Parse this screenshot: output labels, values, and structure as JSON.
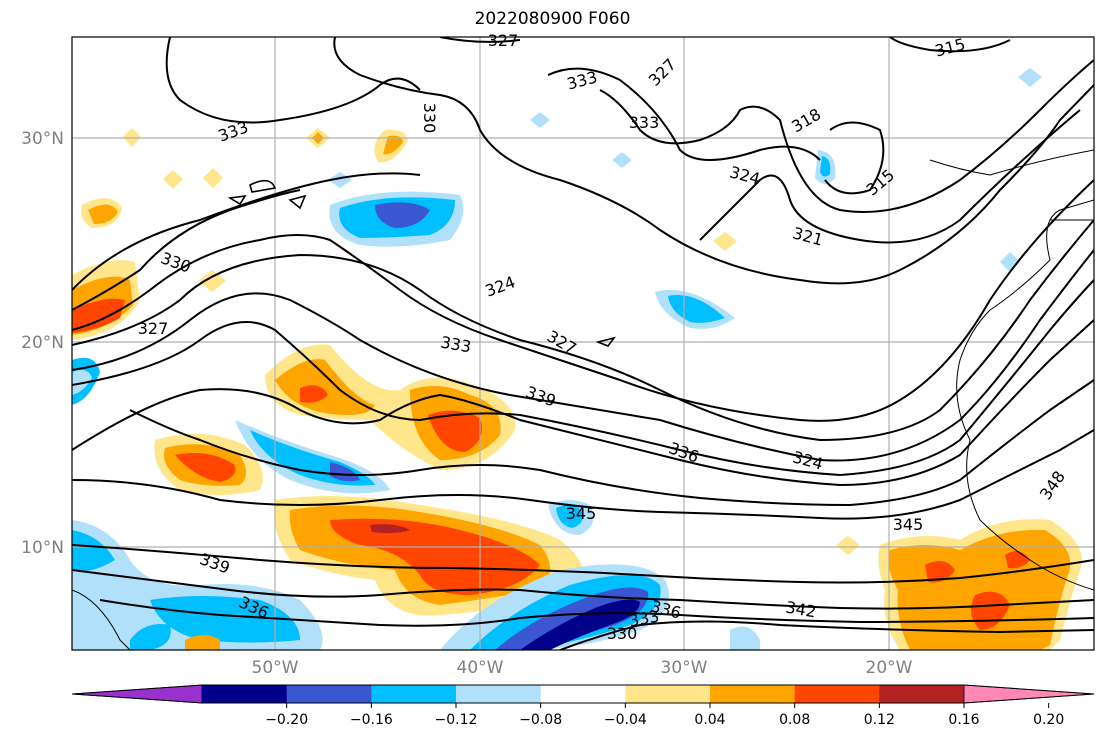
{
  "title": "2022080900 F060",
  "lat_labels": [
    "30°N",
    "20°N",
    "10°N"
  ],
  "lon_labels": [
    "50°W",
    "40°W",
    "30°W",
    "20°W"
  ],
  "colorbar": {
    "colors": [
      "#9932cc",
      "#00008b",
      "#3a56d0",
      "#00bfff",
      "#b0e0fa",
      "#ffffff",
      "#ffe68a",
      "#ffa500",
      "#ff4500",
      "#b22222",
      "#ff88b4"
    ],
    "labels": [
      "−0.20",
      "−0.16",
      "−0.12",
      "−0.08",
      "−0.04",
      "0.04",
      "0.08",
      "0.12",
      "0.16",
      "0.20"
    ]
  },
  "contour_labels": [
    "327",
    "315",
    "333",
    "327",
    "330",
    "333",
    "333",
    "318",
    "324",
    "315",
    "321",
    "330",
    "324",
    "327",
    "333",
    "327",
    "339",
    "336",
    "324",
    "345",
    "345",
    "348",
    "339",
    "342",
    "336",
    "333",
    "336",
    "330"
  ]
}
